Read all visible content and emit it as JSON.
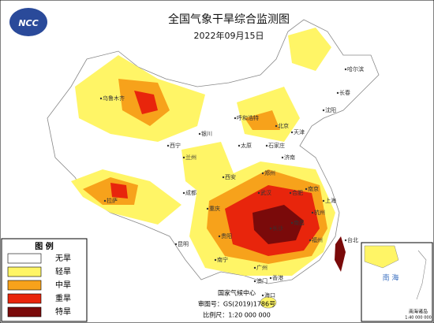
{
  "title": "全国气象干旱综合监测图",
  "date": "2022年09月15日",
  "logo": "NCC",
  "legend": {
    "title": "图 例",
    "items": [
      {
        "label": "无旱",
        "color": "#ffffff"
      },
      {
        "label": "轻旱",
        "color": "#fff566"
      },
      {
        "label": "中旱",
        "color": "#f7a21b"
      },
      {
        "label": "重旱",
        "color": "#e8250c"
      },
      {
        "label": "特旱",
        "color": "#7a0a0a"
      }
    ]
  },
  "footer": {
    "org": "国家气候中心",
    "approval": "审图号：GS(2019)1786号",
    "scale": "比例尺：1:20 000 000"
  },
  "inset": {
    "label": "南 海",
    "caption": "南海诸岛",
    "scale": "1:40 000 000"
  },
  "cities": [
    "哈尔滨",
    "长春",
    "沈阳",
    "乌鲁木齐",
    "呼和浩特",
    "北京",
    "天津",
    "石家庄",
    "太原",
    "济南",
    "银川",
    "西宁",
    "兰州",
    "郑州",
    "西安",
    "拉萨",
    "成都",
    "重庆",
    "武汉",
    "合肥",
    "南京",
    "上海",
    "杭州",
    "长沙",
    "南昌",
    "贵阳",
    "昆明",
    "南宁",
    "广州",
    "福州",
    "台北",
    "香港",
    "澳门",
    "海口"
  ]
}
